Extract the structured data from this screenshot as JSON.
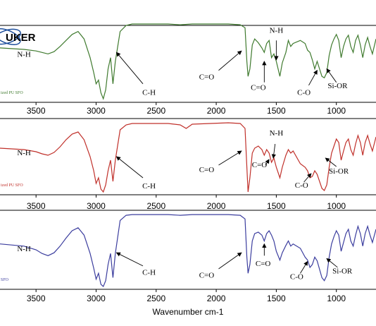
{
  "chart_data": {
    "type": "line",
    "xlabel": "Wavenumber cm-1",
    "xlim": [
      3800,
      670
    ],
    "ticks": [
      "3500",
      "3000",
      "2500",
      "2000",
      "1500",
      "1000"
    ],
    "tick_values": [
      3500,
      3000,
      2500,
      2000,
      1500,
      1000
    ],
    "logo": "UKER",
    "panels": [
      {
        "label": "ized PU SFO",
        "color": "#3f7a2e",
        "points": [
          [
            3800,
            0.68
          ],
          [
            3600,
            0.66
          ],
          [
            3500,
            0.64
          ],
          [
            3450,
            0.62
          ],
          [
            3400,
            0.6
          ],
          [
            3350,
            0.63
          ],
          [
            3300,
            0.7
          ],
          [
            3250,
            0.78
          ],
          [
            3200,
            0.86
          ],
          [
            3150,
            0.9
          ],
          [
            3100,
            0.8
          ],
          [
            3050,
            0.55
          ],
          [
            3020,
            0.35
          ],
          [
            3000,
            0.2
          ],
          [
            2980,
            0.25
          ],
          [
            2960,
            0.08
          ],
          [
            2940,
            0.0
          ],
          [
            2920,
            0.12
          ],
          [
            2900,
            0.4
          ],
          [
            2880,
            0.55
          ],
          [
            2860,
            0.2
          ],
          [
            2840,
            0.5
          ],
          [
            2800,
            0.9
          ],
          [
            2750,
            0.98
          ],
          [
            2700,
            1.0
          ],
          [
            2400,
            1.0
          ],
          [
            2300,
            0.99
          ],
          [
            2200,
            1.0
          ],
          [
            1900,
            1.0
          ],
          [
            1800,
            0.99
          ],
          [
            1760,
            0.95
          ],
          [
            1745,
            0.5
          ],
          [
            1735,
            0.3
          ],
          [
            1720,
            0.4
          ],
          [
            1700,
            0.72
          ],
          [
            1680,
            0.8
          ],
          [
            1650,
            0.75
          ],
          [
            1620,
            0.68
          ],
          [
            1600,
            0.62
          ],
          [
            1580,
            0.74
          ],
          [
            1560,
            0.78
          ],
          [
            1540,
            0.55
          ],
          [
            1520,
            0.6
          ],
          [
            1500,
            0.5
          ],
          [
            1470,
            0.3
          ],
          [
            1450,
            0.48
          ],
          [
            1420,
            0.62
          ],
          [
            1400,
            0.78
          ],
          [
            1380,
            0.7
          ],
          [
            1360,
            0.74
          ],
          [
            1300,
            0.78
          ],
          [
            1260,
            0.74
          ],
          [
            1240,
            0.65
          ],
          [
            1220,
            0.62
          ],
          [
            1200,
            0.52
          ],
          [
            1180,
            0.4
          ],
          [
            1160,
            0.5
          ],
          [
            1120,
            0.3
          ],
          [
            1100,
            0.28
          ],
          [
            1080,
            0.35
          ],
          [
            1060,
            0.58
          ],
          [
            1040,
            0.72
          ],
          [
            1020,
            0.8
          ],
          [
            1000,
            0.86
          ],
          [
            980,
            0.78
          ],
          [
            960,
            0.55
          ],
          [
            940,
            0.7
          ],
          [
            920,
            0.8
          ],
          [
            900,
            0.85
          ],
          [
            880,
            0.7
          ],
          [
            860,
            0.62
          ],
          [
            840,
            0.78
          ],
          [
            820,
            0.85
          ],
          [
            800,
            0.72
          ],
          [
            780,
            0.55
          ],
          [
            760,
            0.72
          ],
          [
            740,
            0.82
          ],
          [
            720,
            0.7
          ],
          [
            700,
            0.6
          ],
          [
            670,
            0.8
          ]
        ]
      },
      {
        "label": "ized PU SFO",
        "color": "#c0302a",
        "points": [
          [
            3800,
            0.62
          ],
          [
            3600,
            0.6
          ],
          [
            3500,
            0.57
          ],
          [
            3450,
            0.54
          ],
          [
            3400,
            0.52
          ],
          [
            3350,
            0.56
          ],
          [
            3300,
            0.64
          ],
          [
            3250,
            0.74
          ],
          [
            3200,
            0.82
          ],
          [
            3150,
            0.85
          ],
          [
            3100,
            0.74
          ],
          [
            3050,
            0.5
          ],
          [
            3020,
            0.3
          ],
          [
            3000,
            0.12
          ],
          [
            2980,
            0.2
          ],
          [
            2960,
            0.04
          ],
          [
            2940,
            0.0
          ],
          [
            2920,
            0.1
          ],
          [
            2900,
            0.3
          ],
          [
            2880,
            0.45
          ],
          [
            2860,
            0.15
          ],
          [
            2840,
            0.45
          ],
          [
            2800,
            0.88
          ],
          [
            2750,
            0.95
          ],
          [
            2700,
            0.97
          ],
          [
            2400,
            0.97
          ],
          [
            2300,
            0.95
          ],
          [
            2250,
            0.9
          ],
          [
            2200,
            0.96
          ],
          [
            1900,
            0.98
          ],
          [
            1800,
            0.97
          ],
          [
            1760,
            0.9
          ],
          [
            1745,
            0.35
          ],
          [
            1735,
            0.0
          ],
          [
            1720,
            0.2
          ],
          [
            1700,
            0.55
          ],
          [
            1680,
            0.62
          ],
          [
            1650,
            0.65
          ],
          [
            1620,
            0.6
          ],
          [
            1600,
            0.52
          ],
          [
            1580,
            0.6
          ],
          [
            1560,
            0.55
          ],
          [
            1540,
            0.42
          ],
          [
            1520,
            0.48
          ],
          [
            1500,
            0.35
          ],
          [
            1470,
            0.2
          ],
          [
            1450,
            0.35
          ],
          [
            1420,
            0.52
          ],
          [
            1400,
            0.6
          ],
          [
            1380,
            0.55
          ],
          [
            1360,
            0.58
          ],
          [
            1300,
            0.4
          ],
          [
            1260,
            0.35
          ],
          [
            1240,
            0.3
          ],
          [
            1220,
            0.2
          ],
          [
            1200,
            0.22
          ],
          [
            1180,
            0.3
          ],
          [
            1160,
            0.25
          ],
          [
            1120,
            0.05
          ],
          [
            1100,
            0.02
          ],
          [
            1080,
            0.1
          ],
          [
            1060,
            0.35
          ],
          [
            1040,
            0.55
          ],
          [
            1020,
            0.65
          ],
          [
            1000,
            0.75
          ],
          [
            980,
            0.7
          ],
          [
            960,
            0.45
          ],
          [
            940,
            0.58
          ],
          [
            920,
            0.7
          ],
          [
            900,
            0.75
          ],
          [
            880,
            0.6
          ],
          [
            860,
            0.52
          ],
          [
            840,
            0.68
          ],
          [
            820,
            0.8
          ],
          [
            800,
            0.7
          ],
          [
            780,
            0.52
          ],
          [
            760,
            0.7
          ],
          [
            740,
            0.8
          ],
          [
            720,
            0.68
          ],
          [
            700,
            0.58
          ],
          [
            670,
            0.78
          ]
        ]
      },
      {
        "label": "SFO",
        "color": "#3b3d9e",
        "points": [
          [
            3800,
            0.58
          ],
          [
            3600,
            0.55
          ],
          [
            3500,
            0.5
          ],
          [
            3450,
            0.45
          ],
          [
            3400,
            0.42
          ],
          [
            3350,
            0.46
          ],
          [
            3300,
            0.55
          ],
          [
            3250,
            0.66
          ],
          [
            3200,
            0.76
          ],
          [
            3150,
            0.8
          ],
          [
            3100,
            0.7
          ],
          [
            3050,
            0.45
          ],
          [
            3020,
            0.25
          ],
          [
            3000,
            0.1
          ],
          [
            2980,
            0.18
          ],
          [
            2960,
            0.03
          ],
          [
            2940,
            0.0
          ],
          [
            2920,
            0.08
          ],
          [
            2900,
            0.3
          ],
          [
            2880,
            0.45
          ],
          [
            2860,
            0.12
          ],
          [
            2840,
            0.45
          ],
          [
            2800,
            0.9
          ],
          [
            2750,
            0.97
          ],
          [
            2700,
            0.98
          ],
          [
            2400,
            0.98
          ],
          [
            2300,
            0.97
          ],
          [
            2200,
            0.98
          ],
          [
            1900,
            0.98
          ],
          [
            1800,
            0.97
          ],
          [
            1760,
            0.92
          ],
          [
            1745,
            0.4
          ],
          [
            1735,
            0.18
          ],
          [
            1720,
            0.3
          ],
          [
            1700,
            0.62
          ],
          [
            1680,
            0.72
          ],
          [
            1650,
            0.74
          ],
          [
            1620,
            0.7
          ],
          [
            1600,
            0.62
          ],
          [
            1580,
            0.72
          ],
          [
            1560,
            0.76
          ],
          [
            1540,
            0.7
          ],
          [
            1520,
            0.62
          ],
          [
            1500,
            0.48
          ],
          [
            1470,
            0.36
          ],
          [
            1450,
            0.46
          ],
          [
            1420,
            0.56
          ],
          [
            1400,
            0.62
          ],
          [
            1380,
            0.55
          ],
          [
            1360,
            0.58
          ],
          [
            1300,
            0.52
          ],
          [
            1260,
            0.4
          ],
          [
            1240,
            0.36
          ],
          [
            1220,
            0.26
          ],
          [
            1200,
            0.3
          ],
          [
            1180,
            0.4
          ],
          [
            1160,
            0.35
          ],
          [
            1120,
            0.12
          ],
          [
            1100,
            0.08
          ],
          [
            1080,
            0.15
          ],
          [
            1060,
            0.4
          ],
          [
            1040,
            0.58
          ],
          [
            1020,
            0.68
          ],
          [
            1000,
            0.76
          ],
          [
            980,
            0.7
          ],
          [
            960,
            0.48
          ],
          [
            940,
            0.6
          ],
          [
            920,
            0.72
          ],
          [
            900,
            0.78
          ],
          [
            880,
            0.62
          ],
          [
            860,
            0.55
          ],
          [
            840,
            0.7
          ],
          [
            820,
            0.82
          ],
          [
            800,
            0.72
          ],
          [
            780,
            0.55
          ],
          [
            760,
            0.72
          ],
          [
            740,
            0.82
          ],
          [
            720,
            0.7
          ],
          [
            700,
            0.6
          ],
          [
            670,
            0.78
          ]
        ]
      }
    ],
    "annotations": [
      {
        "panel": 0,
        "text": "N-H",
        "x": 3600,
        "y": 0.56
      },
      {
        "panel": 0,
        "text": "C-H",
        "x": 2560,
        "y": 0.05,
        "ax": 2610,
        "ay": 0.2,
        "tx": 2830,
        "ty": 0.62
      },
      {
        "panel": 0,
        "text": "C=O",
        "x": 2080,
        "y": 0.26,
        "ax": 1980,
        "ay": 0.38,
        "tx": 1790,
        "ty": 0.64
      },
      {
        "panel": 0,
        "text": "N-H",
        "x": 1500,
        "y": 0.88,
        "ax": 1500,
        "ay": 0.78,
        "tx": 1500,
        "ty": 0.52
      },
      {
        "panel": 0,
        "text": "C=O",
        "x": 1650,
        "y": 0.12,
        "ax": 1600,
        "ay": 0.22,
        "tx": 1600,
        "ty": 0.5
      },
      {
        "panel": 0,
        "text": "C-O",
        "x": 1270,
        "y": 0.05,
        "ax": 1230,
        "ay": 0.18,
        "tx": 1160,
        "ty": 0.38
      },
      {
        "panel": 0,
        "text": "Si-OR",
        "x": 990,
        "y": 0.14,
        "ax": 1000,
        "ay": 0.22,
        "tx": 1080,
        "ty": 0.4
      },
      {
        "panel": 1,
        "text": "N-H",
        "x": 3600,
        "y": 0.52
      },
      {
        "panel": 1,
        "text": "C-H",
        "x": 2560,
        "y": 0.05,
        "ax": 2610,
        "ay": 0.2,
        "tx": 2830,
        "ty": 0.5
      },
      {
        "panel": 1,
        "text": "C=O",
        "x": 2080,
        "y": 0.28,
        "ax": 1980,
        "ay": 0.38,
        "tx": 1790,
        "ty": 0.58
      },
      {
        "panel": 1,
        "text": "N-H",
        "x": 1500,
        "y": 0.8,
        "ax": 1510,
        "ay": 0.68,
        "tx": 1525,
        "ty": 0.48
      },
      {
        "panel": 1,
        "text": "C=O",
        "x": 1640,
        "y": 0.35,
        "ax": 1590,
        "ay": 0.38,
        "tx": 1560,
        "ty": 0.46
      },
      {
        "panel": 1,
        "text": "C-O",
        "x": 1290,
        "y": 0.06,
        "ax": 1270,
        "ay": 0.14,
        "tx": 1210,
        "ty": 0.26
      },
      {
        "panel": 1,
        "text": "Si-OR",
        "x": 980,
        "y": 0.26,
        "ax": 1000,
        "ay": 0.36,
        "tx": 1090,
        "ty": 0.48
      },
      {
        "panel": 2,
        "text": "N-H",
        "x": 3600,
        "y": 0.48
      },
      {
        "panel": 2,
        "text": "C-H",
        "x": 2560,
        "y": 0.16,
        "ax": 2610,
        "ay": 0.28,
        "tx": 2830,
        "ty": 0.46
      },
      {
        "panel": 2,
        "text": "C=O",
        "x": 2080,
        "y": 0.12,
        "ax": 1980,
        "ay": 0.24,
        "tx": 1790,
        "ty": 0.46
      },
      {
        "panel": 2,
        "text": "C=O",
        "x": 1610,
        "y": 0.28,
        "ax": 1600,
        "ay": 0.42,
        "tx": 1600,
        "ty": 0.58
      },
      {
        "panel": 2,
        "text": "C-O",
        "x": 1330,
        "y": 0.1,
        "ax": 1300,
        "ay": 0.18,
        "tx": 1240,
        "ty": 0.34
      },
      {
        "panel": 2,
        "text": "Si-OR",
        "x": 950,
        "y": 0.18,
        "ax": 990,
        "ay": 0.26,
        "tx": 1080,
        "ty": 0.38
      }
    ]
  }
}
